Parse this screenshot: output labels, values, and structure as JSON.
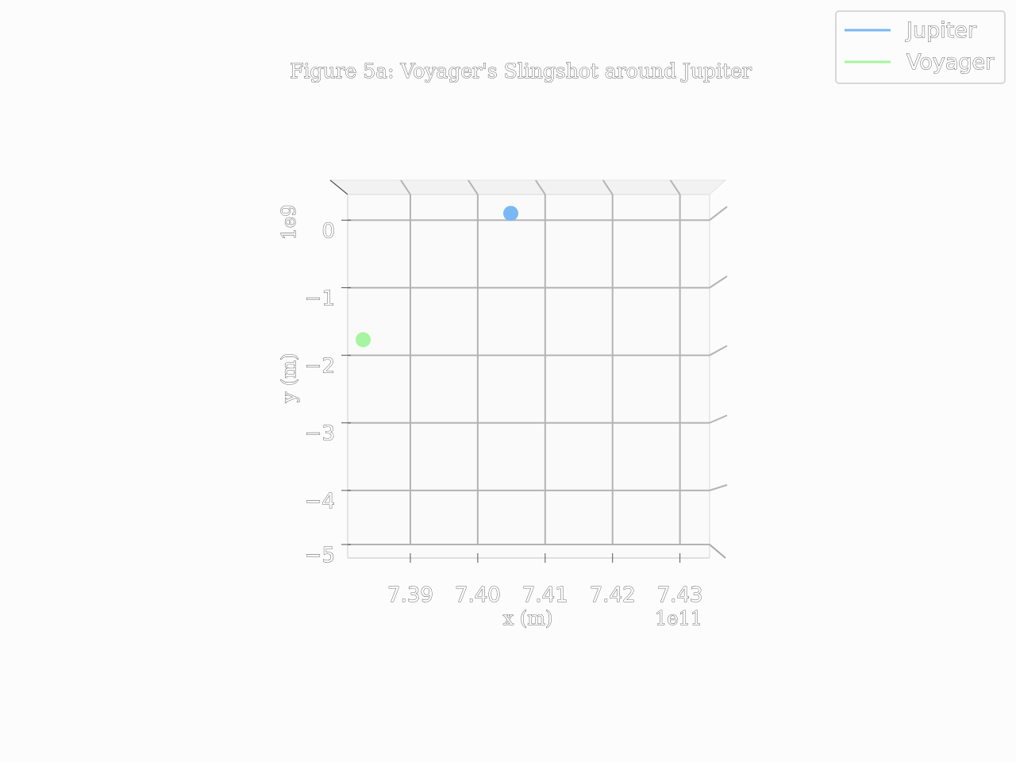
{
  "chart_data": {
    "type": "scatter",
    "projection": "3d",
    "title": "Figure 5a: Voyager's Slingshot around Jupiter",
    "xlabel": "x (m)",
    "ylabel": "y (m)",
    "x_offset_label": "1e11",
    "y_offset_label": "1e9",
    "x_ticks": [
      7.39,
      7.4,
      7.41,
      7.42,
      7.43
    ],
    "x_tick_labels": [
      "7.39",
      "7.40",
      "7.41",
      "7.42",
      "7.43"
    ],
    "y_ticks": [
      0,
      -1,
      -2,
      -3,
      -4,
      -5
    ],
    "y_tick_labels": [
      "0",
      "−1",
      "−2",
      "−3",
      "−4",
      "−5"
    ],
    "xlim": [
      7.3807,
      7.4344
    ],
    "ylim": [
      -5.0,
      0.38
    ],
    "grid": true,
    "legend_position": "top-right",
    "series": [
      {
        "name": "Jupiter",
        "color": "#7ab8f5",
        "points": [
          {
            "x": 7.4049,
            "y": 0.1
          }
        ]
      },
      {
        "name": "Voyager",
        "color": "#a6f5a0",
        "points": [
          {
            "x": 7.383,
            "y": -1.77
          }
        ]
      }
    ]
  }
}
